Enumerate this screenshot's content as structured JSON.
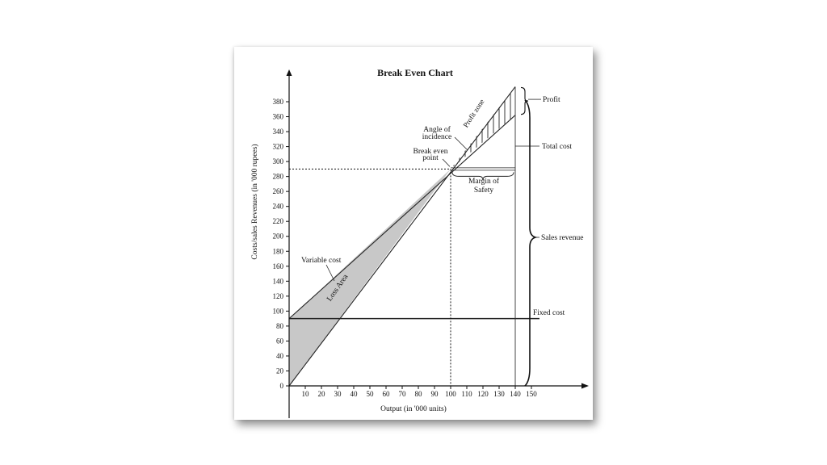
{
  "chart_data": {
    "type": "line",
    "title": "Break  Even  Chart",
    "xlabel": "Output (in '000 units)",
    "ylabel": "Costs/sales Revenues (in '000 rupees)",
    "x_ticks": [
      10,
      20,
      30,
      40,
      50,
      60,
      70,
      80,
      90,
      100,
      110,
      120,
      130,
      140,
      150
    ],
    "y_ticks": [
      0,
      20,
      40,
      60,
      80,
      100,
      120,
      140,
      160,
      180,
      200,
      220,
      240,
      260,
      280,
      300,
      320,
      340,
      360,
      380
    ],
    "xlim": [
      0,
      180
    ],
    "ylim": [
      0,
      410
    ],
    "series": [
      {
        "name": "Sales revenue",
        "x": [
          0,
          140
        ],
        "y": [
          0,
          400
        ]
      },
      {
        "name": "Total cost",
        "x": [
          0,
          140
        ],
        "y": [
          90,
          362
        ]
      },
      {
        "name": "Fixed cost",
        "x": [
          0,
          155
        ],
        "y": [
          90,
          90
        ]
      }
    ],
    "break_even": {
      "x": 100,
      "y": 290
    },
    "annotations": {
      "variable_cost": "Variable cost",
      "loss_area": "Loss Area",
      "profit_zone": "Profit zone",
      "angle_of_incidence": [
        "Angle of",
        "incidence"
      ],
      "break_even_point": [
        "Break even",
        "point"
      ],
      "margin_of_safety": [
        "Margin of",
        "Safety"
      ],
      "profit": "Profit",
      "total_cost": "Total cost",
      "sales_revenue": "Sales revenue",
      "fixed_cost": "Fixed cost"
    }
  }
}
